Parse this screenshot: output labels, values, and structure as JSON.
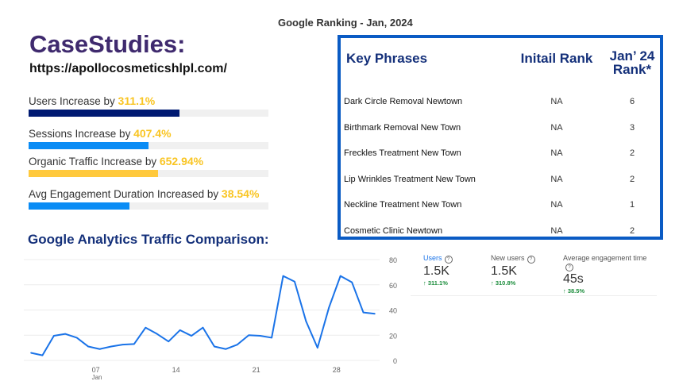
{
  "ranking_title": "Google Ranking - Jan, 2024",
  "case_studies": {
    "title": "CaseStudies:",
    "url": "https://apollocosmeticshlpl.com/"
  },
  "metrics": [
    {
      "label": "Users Increase by ",
      "value": "311.1%",
      "fill_percent": 63,
      "color": "#001a72"
    },
    {
      "label": "Sessions Increase by ",
      "value": "407.4%",
      "fill_percent": 50,
      "color": "#0a8cf5"
    },
    {
      "label": "Organic Traffic Increase by ",
      "value": "652.94%",
      "fill_percent": 54,
      "color": "#ffc93c"
    },
    {
      "label": "Avg Engagement Duration Increased by ",
      "value": "38.54%",
      "fill_percent": 42,
      "color": "#0a8cf5"
    }
  ],
  "table": {
    "headers": [
      "Key Phrases",
      "Initail Rank",
      "Jan’ 24 Rank*"
    ],
    "rows": [
      [
        "Dark Circle Removal Newtown",
        "NA",
        "6"
      ],
      [
        "Birthmark Removal New Town",
        "NA",
        "3"
      ],
      [
        "Freckles Treatment New Town",
        "NA",
        "2"
      ],
      [
        "Lip Wrinkles Treatment New Town",
        "NA",
        "2"
      ],
      [
        "Neckline Treatment New Town",
        "NA",
        "1"
      ],
      [
        "Cosmetic Clinic Newtown",
        "NA",
        "2"
      ]
    ]
  },
  "analytics_title": "Google Analytics Traffic Comparison:",
  "cards": [
    {
      "label": "Users",
      "value": "1.5K",
      "delta": "311.1%",
      "active": true
    },
    {
      "label": "New users",
      "value": "1.5K",
      "delta": "310.8%",
      "active": false
    },
    {
      "label": "Average engagement time",
      "value": "45s",
      "delta": "38.5%",
      "active": false
    }
  ],
  "chart_data": {
    "type": "line",
    "x": [
      1,
      2,
      3,
      4,
      5,
      6,
      7,
      8,
      9,
      10,
      11,
      12,
      13,
      14,
      15,
      16,
      17,
      18,
      19,
      20,
      21,
      22,
      23,
      24,
      25,
      26,
      27,
      28,
      29,
      30,
      31
    ],
    "values": [
      6,
      4,
      19.5,
      21,
      18,
      11,
      9,
      11,
      12.5,
      13,
      26,
      21,
      15,
      24,
      19.5,
      26,
      11,
      9,
      12.5,
      20,
      19.5,
      18,
      67,
      62.5,
      31,
      10,
      42,
      67,
      62,
      38,
      37
    ],
    "x_ticks": [
      {
        "day": 7,
        "label": "07",
        "sub": "Jan"
      },
      {
        "day": 14,
        "label": "14"
      },
      {
        "day": 21,
        "label": "21"
      },
      {
        "day": 28,
        "label": "28"
      }
    ],
    "y_ticks": [
      "0",
      "20",
      "40",
      "60",
      "80"
    ],
    "ylim": [
      0,
      80
    ],
    "grid": true,
    "color": "#1a73e8"
  }
}
